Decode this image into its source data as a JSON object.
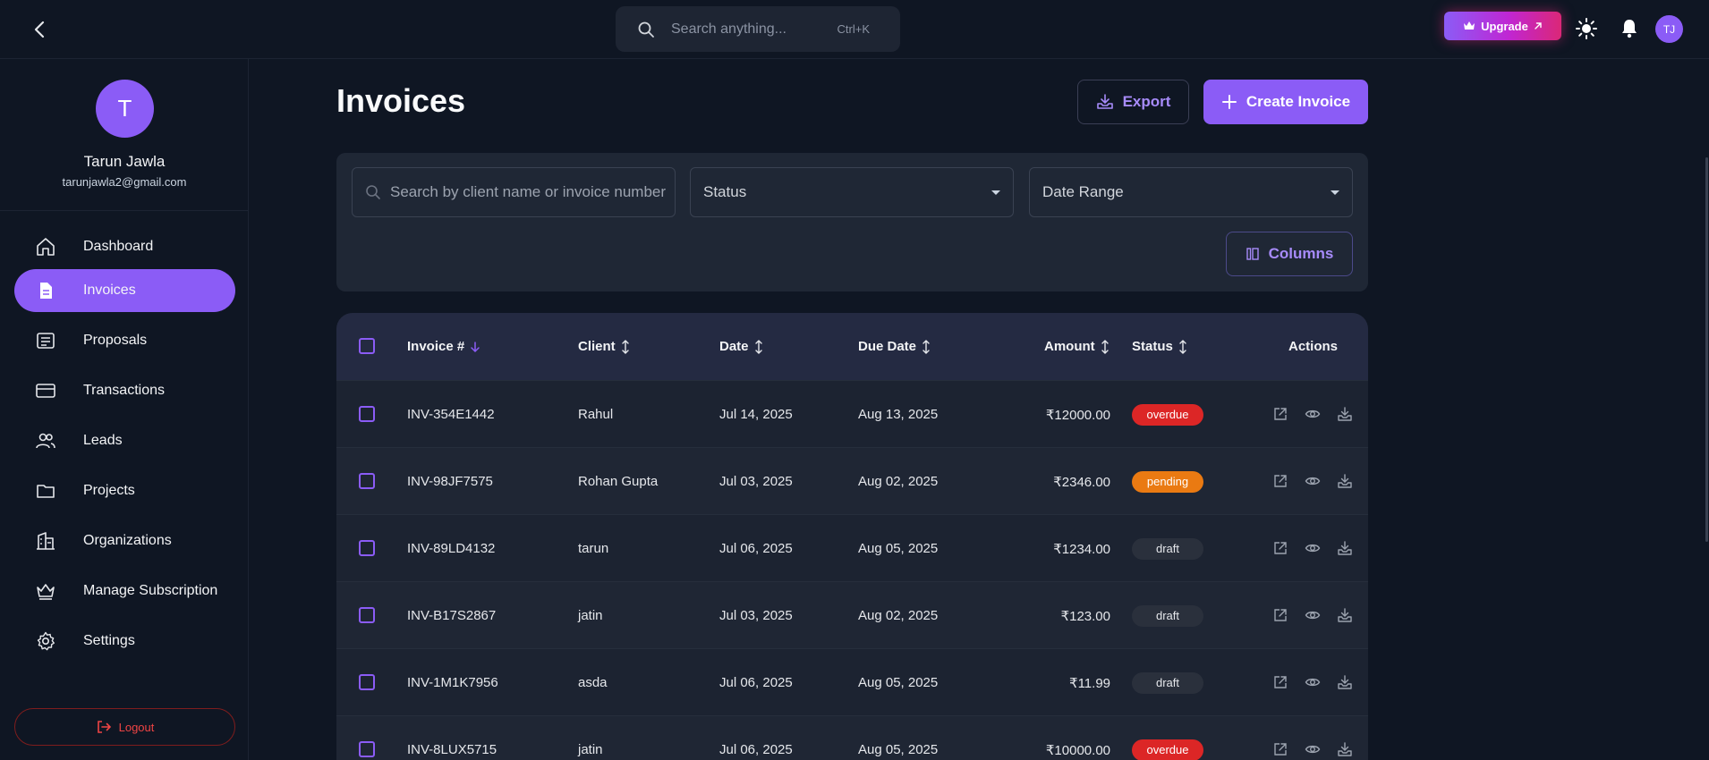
{
  "topbar": {
    "search_placeholder": "Search anything...",
    "search_shortcut": "Ctrl+K",
    "upgrade_label": "Upgrade",
    "avatar_initials": "TJ"
  },
  "profile": {
    "initial": "T",
    "name": "Tarun Jawla",
    "email": "tarunjawla2@gmail.com"
  },
  "nav": [
    {
      "label": "Dashboard",
      "icon": "home-icon"
    },
    {
      "label": "Invoices",
      "icon": "document-icon",
      "active": true
    },
    {
      "label": "Proposals",
      "icon": "proposal-icon"
    },
    {
      "label": "Transactions",
      "icon": "credit-card-icon"
    },
    {
      "label": "Leads",
      "icon": "users-icon"
    },
    {
      "label": "Projects",
      "icon": "folder-icon"
    },
    {
      "label": "Organizations",
      "icon": "building-icon"
    },
    {
      "label": "Manage Subscription",
      "icon": "crown-icon"
    },
    {
      "label": "Settings",
      "icon": "gear-icon"
    }
  ],
  "logout_label": "Logout",
  "page": {
    "title": "Invoices",
    "export_label": "Export",
    "create_label": "Create Invoice"
  },
  "filters": {
    "search_placeholder": "Search by client name or invoice number",
    "status_label": "Status",
    "date_range_label": "Date Range",
    "columns_label": "Columns"
  },
  "table": {
    "headers": {
      "invoice": "Invoice #",
      "client": "Client",
      "date": "Date",
      "due_date": "Due Date",
      "amount": "Amount",
      "status": "Status",
      "actions": "Actions"
    },
    "rows": [
      {
        "invoice": "INV-354E1442",
        "client": "Rahul",
        "date": "Jul 14, 2025",
        "due": "Aug 13, 2025",
        "amount": "₹12000.00",
        "status": "overdue"
      },
      {
        "invoice": "INV-98JF7575",
        "client": "Rohan Gupta",
        "date": "Jul 03, 2025",
        "due": "Aug 02, 2025",
        "amount": "₹2346.00",
        "status": "pending"
      },
      {
        "invoice": "INV-89LD4132",
        "client": "tarun",
        "date": "Jul 06, 2025",
        "due": "Aug 05, 2025",
        "amount": "₹1234.00",
        "status": "draft"
      },
      {
        "invoice": "INV-B17S2867",
        "client": "jatin",
        "date": "Jul 03, 2025",
        "due": "Aug 02, 2025",
        "amount": "₹123.00",
        "status": "draft"
      },
      {
        "invoice": "INV-1M1K7956",
        "client": "asda",
        "date": "Jul 06, 2025",
        "due": "Aug 05, 2025",
        "amount": "₹11.99",
        "status": "draft"
      },
      {
        "invoice": "INV-8LUX5715",
        "client": "jatin",
        "date": "Jul 06, 2025",
        "due": "Aug 05, 2025",
        "amount": "₹10000.00",
        "status": "overdue"
      }
    ]
  },
  "colors": {
    "accent": "#8b5cf6",
    "background": "#0f1623",
    "overdue": "#dc2626",
    "pending": "#ea7a12",
    "logout": "#ef4444"
  }
}
